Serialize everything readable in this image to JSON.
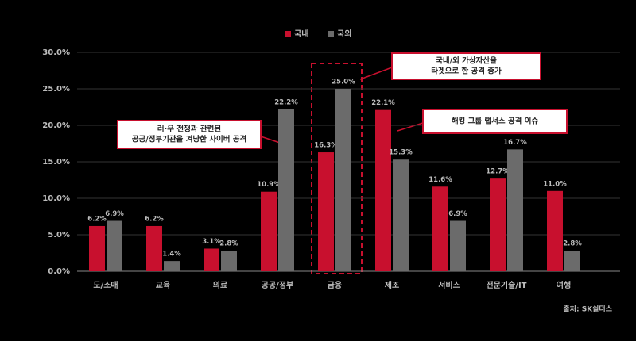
{
  "chart_data": {
    "type": "bar",
    "categories": [
      "도/소매",
      "교육",
      "의료",
      "공공/정부",
      "금융",
      "제조",
      "서비스",
      "전문기술/IT",
      "여행"
    ],
    "series": [
      {
        "name": "국내",
        "color": "#c8102e",
        "values": [
          6.2,
          6.2,
          3.1,
          10.9,
          16.3,
          22.1,
          11.6,
          12.7,
          11.0
        ],
        "value_labels": [
          "6.2%",
          "6.2%",
          "3.1%",
          "10.9%",
          "16.3%",
          "22.1%",
          "11.6%",
          "12.7%",
          "11.0%"
        ]
      },
      {
        "name": "국외",
        "color": "#6b6b6b",
        "values": [
          6.9,
          1.4,
          2.8,
          22.2,
          25.0,
          15.3,
          6.9,
          16.7,
          2.8
        ],
        "value_labels": [
          "6.9%",
          "1.4%",
          "2.8%",
          "22.2%",
          "25.0%",
          "15.3%",
          "6.9%",
          "16.7%",
          "2.8%"
        ]
      }
    ],
    "ylim": [
      0,
      30
    ],
    "yticks": [
      {
        "value": 0,
        "label": "0.0%"
      },
      {
        "value": 5,
        "label": "5.0%"
      },
      {
        "value": 10,
        "label": "10.0%"
      },
      {
        "value": 15,
        "label": "15.0%"
      },
      {
        "value": 20,
        "label": "20.0%"
      },
      {
        "value": 25,
        "label": "25.0%"
      },
      {
        "value": 30,
        "label": "30.0%"
      }
    ],
    "annotations": [
      {
        "lines": [
          "러·우 전쟁과 관련된",
          "공공/정부기관을 겨냥한 사이버 공격"
        ]
      },
      {
        "lines": [
          "국내/외 가상자산을",
          "타겟으로 한 공격 증가"
        ]
      },
      {
        "lines": [
          "해킹 그룹 랩서스 공격 이슈"
        ]
      }
    ],
    "source": "출처: SK쉴더스"
  }
}
